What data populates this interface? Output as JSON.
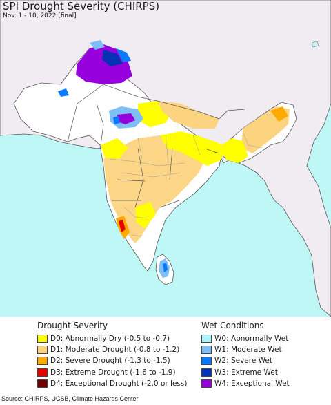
{
  "title": "SPI Drought Severity (CHIRPS)",
  "subtitle": "Nov. 1 - 10, 2022 [final]",
  "source": "Source: CHIRPS, UCSB, Climate Hazards Center",
  "colors": {
    "sea": "#bff7f7",
    "land_outside": "#f0ecf2",
    "land_normal": "#ffffff",
    "border": "#555555"
  },
  "legend": {
    "drought": {
      "heading": "Drought Severity",
      "items": [
        {
          "label": "D0: Abnormally Dry (-0.5 to -0.7)",
          "color": "#ffff00"
        },
        {
          "label": "D1: Moderate Drought (-0.8 to -1.2)",
          "color": "#fcd37f"
        },
        {
          "label": "D2: Severe Drought (-1.3 to -1.5)",
          "color": "#ffaa00"
        },
        {
          "label": "D3: Extreme Drought (-1.6 to -1.9)",
          "color": "#e60000"
        },
        {
          "label": "D4: Exceptional Drought (-2.0 or less)",
          "color": "#730000"
        }
      ]
    },
    "wet": {
      "heading": "Wet Conditions",
      "items": [
        {
          "label": "W0: Abnormally Wet",
          "color": "#aaf5ff"
        },
        {
          "label": "W1: Moderate Wet",
          "color": "#7fbef5"
        },
        {
          "label": "W2: Severe Wet",
          "color": "#0a78ff"
        },
        {
          "label": "W3: Extreme Wet",
          "color": "#0432b4"
        },
        {
          "label": "W4: Exceptional Wet",
          "color": "#9600dc"
        }
      ]
    }
  }
}
